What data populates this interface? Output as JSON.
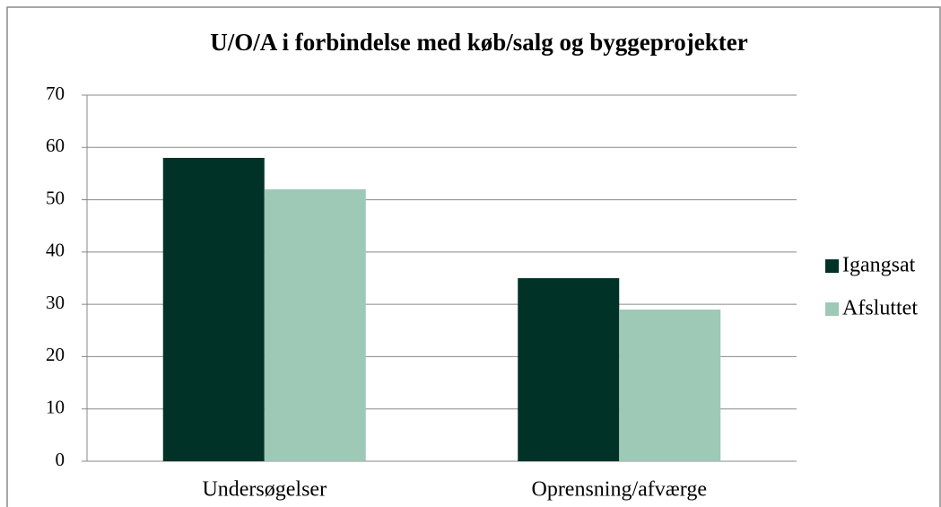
{
  "chart_data": {
    "type": "bar",
    "title": "U/O/A i forbindelse med køb/salg og byggeprojekter",
    "categories": [
      "Undersøgelser",
      "Oprensning/afværge"
    ],
    "series": [
      {
        "name": "Igangsat",
        "color": "#003228",
        "values": [
          58,
          35
        ]
      },
      {
        "name": "Afsluttet",
        "color": "#9ec9b6",
        "values": [
          52,
          29
        ]
      }
    ],
    "ylim": [
      0,
      70
    ],
    "yticks": [
      0,
      10,
      20,
      30,
      40,
      50,
      60,
      70
    ],
    "grid": true,
    "legend": "right"
  }
}
